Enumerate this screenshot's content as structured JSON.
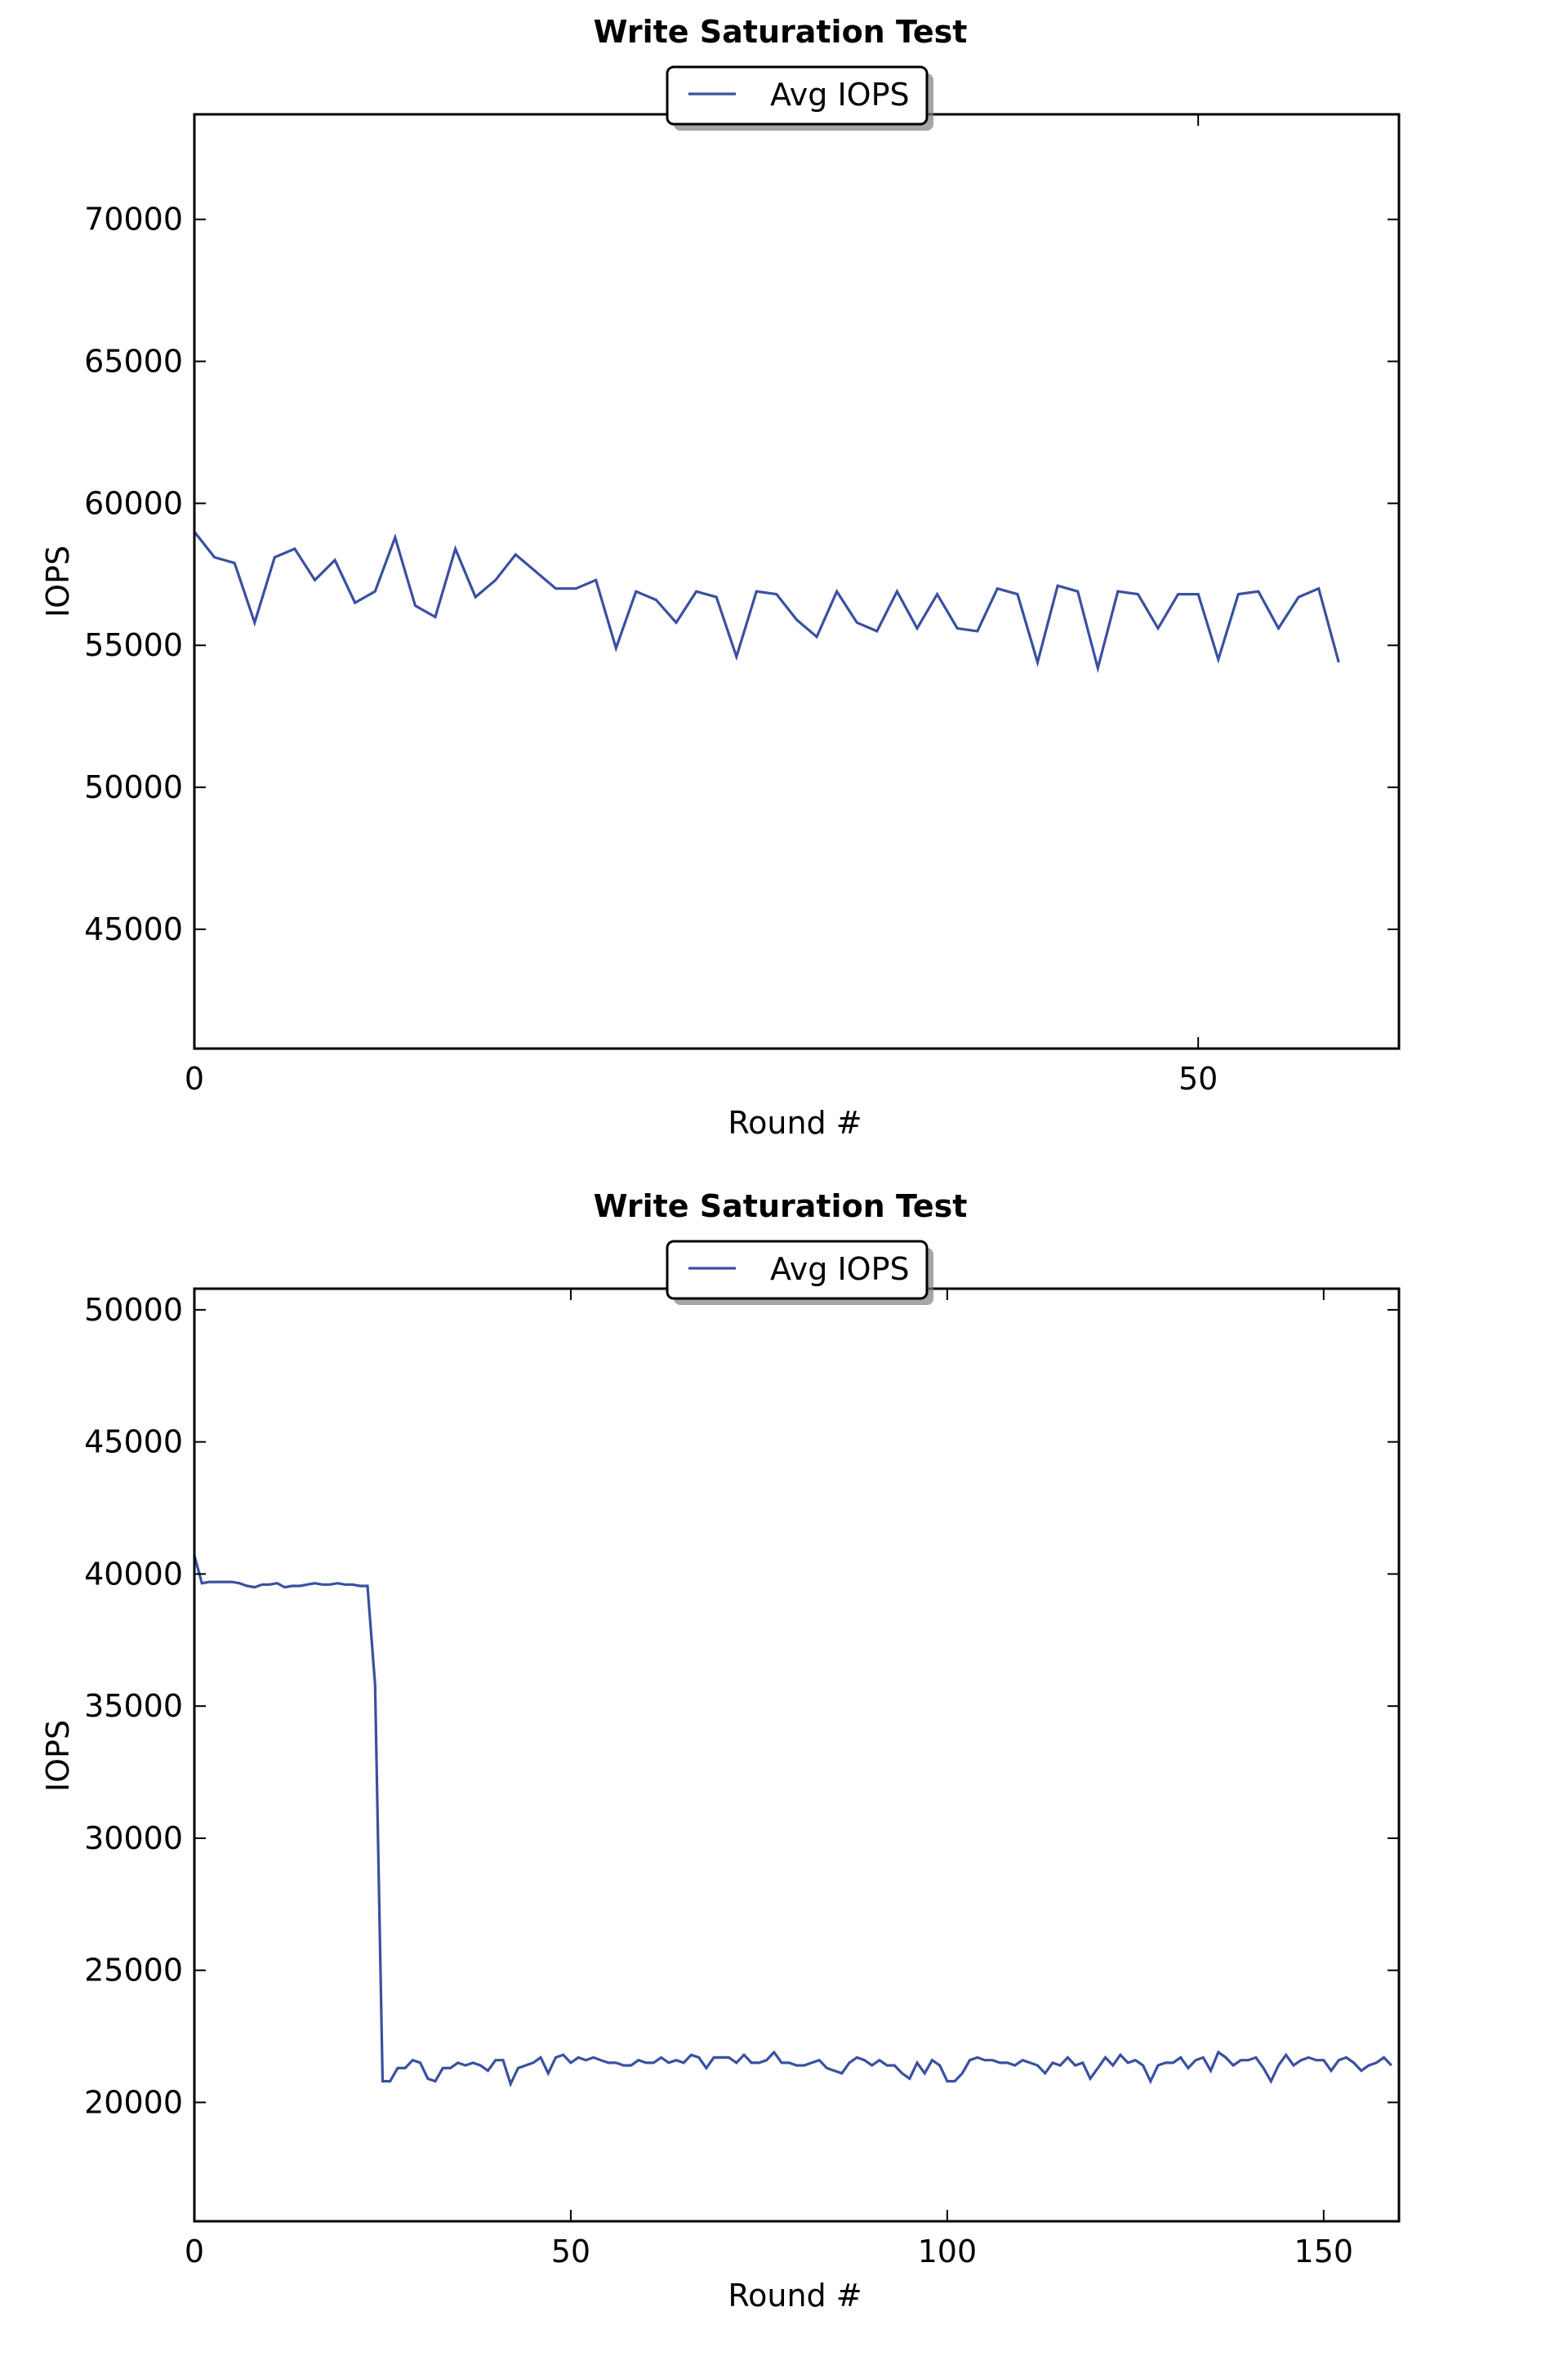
{
  "chart_data": [
    {
      "type": "line",
      "title": "Write Saturation Test",
      "xlabel": "Round #",
      "ylabel": "IOPS",
      "xlim": [
        0,
        60
      ],
      "ylim": [
        40800,
        73700
      ],
      "xticks": [
        0,
        50
      ],
      "yticks": [
        45000,
        50000,
        55000,
        60000,
        65000,
        70000
      ],
      "grid": false,
      "legend_position": "upper center",
      "series": [
        {
          "name": "Avg IOPS",
          "color": "#3a50a0",
          "x": [
            0,
            1,
            2,
            3,
            4,
            5,
            6,
            7,
            8,
            9,
            10,
            11,
            12,
            13,
            14,
            15,
            16,
            17,
            18,
            19,
            20,
            21,
            22,
            23,
            24,
            25,
            26,
            27,
            28,
            29,
            30,
            31,
            32,
            33,
            34,
            35,
            36,
            37,
            38,
            39,
            40,
            41,
            42,
            43,
            44,
            45,
            46,
            47,
            48,
            49,
            50,
            51,
            52,
            53,
            54,
            55,
            56,
            57
          ],
          "values": [
            59000,
            58100,
            57900,
            55800,
            58100,
            58400,
            57300,
            58000,
            56500,
            56900,
            58800,
            56400,
            56000,
            58400,
            56700,
            57300,
            58200,
            57600,
            57000,
            57000,
            57300,
            54900,
            56900,
            56600,
            55800,
            56900,
            56700,
            54600,
            56900,
            56800,
            55900,
            55300,
            56900,
            55800,
            55500,
            56900,
            55600,
            56800,
            55600,
            55500,
            57000,
            56800,
            54400,
            57100,
            56900,
            54200,
            56900,
            56800,
            55600,
            56800,
            56800,
            54500,
            56800,
            56900,
            55600,
            56700,
            57000,
            54400
          ]
        }
      ]
    },
    {
      "type": "line",
      "title": "Write Saturation Test",
      "xlabel": "Round #",
      "ylabel": "IOPS",
      "xlim": [
        0,
        160
      ],
      "ylim": [
        15500,
        50800
      ],
      "xticks": [
        0,
        50,
        100,
        150
      ],
      "yticks": [
        20000,
        25000,
        30000,
        35000,
        40000,
        45000,
        50000
      ],
      "grid": false,
      "legend_position": "upper center",
      "series": [
        {
          "name": "Avg IOPS",
          "color": "#3a50a0",
          "values": [
            40700,
            39650,
            39700,
            39700,
            39700,
            39700,
            39650,
            39550,
            39500,
            39600,
            39600,
            39650,
            39500,
            39550,
            39550,
            39600,
            39650,
            39600,
            39600,
            39650,
            39600,
            39600,
            39550,
            39550,
            35800,
            20800,
            20800,
            21300,
            21300,
            21600,
            21500,
            20900,
            20800,
            21300,
            21300,
            21500,
            21400,
            21500,
            21400,
            21200,
            21600,
            21600,
            20700,
            21300,
            21400,
            21500,
            21700,
            21100,
            21700,
            21800,
            21500,
            21700,
            21600,
            21700,
            21600,
            21500,
            21500,
            21400,
            21400,
            21600,
            21500,
            21500,
            21700,
            21500,
            21600,
            21500,
            21800,
            21700,
            21300,
            21700,
            21700,
            21700,
            21500,
            21800,
            21500,
            21500,
            21600,
            21900,
            21500,
            21500,
            21400,
            21400,
            21500,
            21600,
            21300,
            21200,
            21100,
            21500,
            21700,
            21600,
            21400,
            21600,
            21400,
            21400,
            21100,
            20900,
            21500,
            21100,
            21600,
            21400,
            20800,
            20800,
            21100,
            21600,
            21700,
            21600,
            21600,
            21500,
            21500,
            21400,
            21600,
            21500,
            21400,
            21100,
            21500,
            21400,
            21700,
            21400,
            21500,
            20900,
            21300,
            21700,
            21400,
            21800,
            21500,
            21600,
            21400,
            20800,
            21400,
            21500,
            21500,
            21700,
            21300,
            21600,
            21700,
            21200,
            21900,
            21700,
            21400,
            21600,
            21600,
            21700,
            21300,
            20800,
            21400,
            21800,
            21400,
            21600,
            21700,
            21600,
            21600,
            21200,
            21600,
            21700,
            21500,
            21200,
            21400,
            21500,
            21700,
            21400
          ]
        }
      ]
    }
  ]
}
